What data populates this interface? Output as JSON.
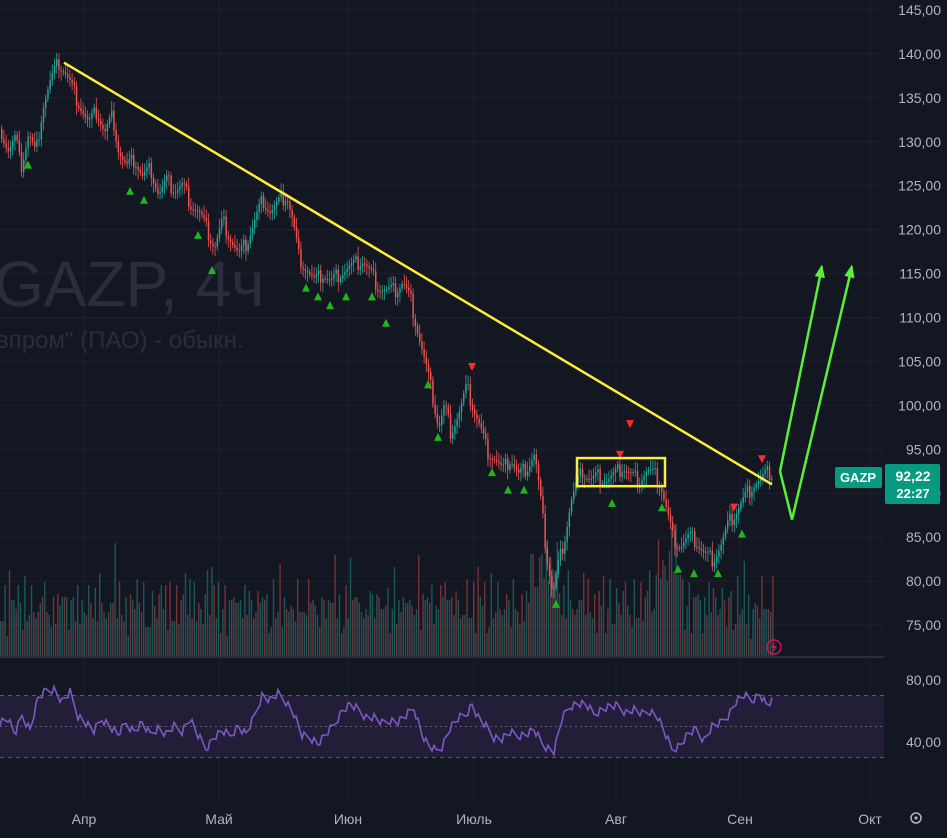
{
  "chart_data": {
    "type": "candlestick",
    "watermark": {
      "symbol_line": "GAZP, 4ч",
      "name_line": "впром\" (ПАО) - обыкн."
    },
    "price_axis": {
      "ticks": [
        "145,00",
        "140,00",
        "135,00",
        "130,00",
        "125,00",
        "120,00",
        "115,00",
        "110,00",
        "105,00",
        "100,00",
        "95,00",
        "90,00",
        "85,00",
        "80,00",
        "75,00"
      ],
      "range": [
        70,
        146
      ]
    },
    "time_axis": {
      "ticks": [
        "Апр",
        "Май",
        "Июн",
        "Июль",
        "Авг",
        "Сен",
        "Окт"
      ]
    },
    "rsi_axis": {
      "ticks": [
        "80,00",
        "40,00"
      ],
      "range": [
        20,
        90
      ],
      "upper_band": 70,
      "lower_band": 30,
      "mid": 50
    },
    "last_price": {
      "symbol": "GAZP",
      "value": "92,22",
      "countdown": "22:27"
    },
    "price_path": [
      [
        0,
        131.5
      ],
      [
        8,
        129
      ],
      [
        15,
        130.5
      ],
      [
        20,
        127
      ],
      [
        28,
        131
      ],
      [
        35,
        128.5
      ],
      [
        42,
        134
      ],
      [
        50,
        137
      ],
      [
        58,
        139
      ],
      [
        64,
        138
      ],
      [
        72,
        136
      ],
      [
        80,
        134
      ],
      [
        88,
        132
      ],
      [
        96,
        133.5
      ],
      [
        104,
        131
      ],
      [
        112,
        133
      ],
      [
        118,
        129
      ],
      [
        126,
        127
      ],
      [
        134,
        128
      ],
      [
        142,
        126
      ],
      [
        150,
        127
      ],
      [
        158,
        124
      ],
      [
        166,
        125.5
      ],
      [
        174,
        124.5
      ],
      [
        182,
        125
      ],
      [
        190,
        123
      ],
      [
        198,
        122
      ],
      [
        206,
        120
      ],
      [
        214,
        118
      ],
      [
        222,
        121
      ],
      [
        230,
        119
      ],
      [
        238,
        117
      ],
      [
        246,
        118.5
      ],
      [
        254,
        121
      ],
      [
        262,
        123.5
      ],
      [
        270,
        122
      ],
      [
        278,
        123
      ],
      [
        286,
        124
      ],
      [
        292,
        121
      ],
      [
        298,
        117
      ],
      [
        306,
        115.5
      ],
      [
        314,
        114
      ],
      [
        322,
        115
      ],
      [
        330,
        114
      ],
      [
        338,
        115
      ],
      [
        346,
        115.5
      ],
      [
        354,
        116
      ],
      [
        362,
        116.5
      ],
      [
        370,
        115
      ],
      [
        378,
        113.5
      ],
      [
        386,
        113
      ],
      [
        394,
        113
      ],
      [
        402,
        114
      ],
      [
        410,
        112
      ],
      [
        418,
        108
      ],
      [
        426,
        104
      ],
      [
        432,
        101
      ],
      [
        438,
        97.5
      ],
      [
        444,
        100
      ],
      [
        450,
        97
      ],
      [
        458,
        99
      ],
      [
        466,
        102
      ],
      [
        472,
        100
      ],
      [
        478,
        98
      ],
      [
        486,
        95
      ],
      [
        494,
        94
      ],
      [
        502,
        92.5
      ],
      [
        510,
        94
      ],
      [
        518,
        92
      ],
      [
        526,
        93
      ],
      [
        534,
        94.5
      ],
      [
        540,
        89
      ],
      [
        546,
        83
      ],
      [
        552,
        78.5
      ],
      [
        558,
        82
      ],
      [
        564,
        85
      ],
      [
        570,
        89
      ],
      [
        576,
        91
      ],
      [
        582,
        92.5
      ],
      [
        590,
        91.5
      ],
      [
        598,
        92
      ],
      [
        606,
        91.5
      ],
      [
        614,
        92
      ],
      [
        622,
        93
      ],
      [
        630,
        92
      ],
      [
        638,
        91.5
      ],
      [
        646,
        92.5
      ],
      [
        654,
        92
      ],
      [
        660,
        91
      ],
      [
        666,
        88
      ],
      [
        672,
        85
      ],
      [
        680,
        84
      ],
      [
        688,
        85
      ],
      [
        696,
        84.5
      ],
      [
        704,
        83
      ],
      [
        712,
        82.5
      ],
      [
        720,
        84
      ],
      [
        728,
        86.5
      ],
      [
        736,
        88
      ],
      [
        744,
        89.5
      ],
      [
        752,
        91
      ],
      [
        760,
        91.5
      ],
      [
        768,
        92.3
      ],
      [
        772,
        92.2
      ]
    ],
    "volume_profile": [
      6,
      4,
      8,
      3,
      12,
      5,
      7,
      9,
      4,
      3,
      10,
      6,
      5,
      8,
      7,
      4,
      3,
      9,
      6,
      5,
      11,
      4,
      7,
      3,
      6,
      5,
      8,
      4,
      9,
      7,
      5,
      3,
      6,
      10,
      4,
      8,
      5,
      7,
      3,
      6,
      9,
      4,
      5,
      8,
      6,
      12,
      5,
      7,
      4,
      3,
      8,
      6,
      14,
      5,
      9,
      7,
      4,
      6,
      3,
      8,
      5,
      7,
      10,
      4,
      6,
      9,
      5,
      3,
      7,
      8,
      4,
      6,
      11,
      5,
      7,
      3,
      9,
      6,
      4,
      8,
      5,
      7,
      6,
      13,
      4,
      8,
      5,
      9,
      6,
      7,
      4,
      5,
      8,
      10,
      6,
      12,
      7,
      5,
      9,
      4,
      6,
      8,
      3,
      7,
      5,
      9
    ],
    "rsi_path": [
      [
        0,
        53
      ],
      [
        8,
        55
      ],
      [
        15,
        45
      ],
      [
        22,
        57
      ],
      [
        30,
        48
      ],
      [
        38,
        68
      ],
      [
        46,
        73
      ],
      [
        54,
        74
      ],
      [
        62,
        66
      ],
      [
        70,
        72
      ],
      [
        78,
        57
      ],
      [
        86,
        52
      ],
      [
        94,
        47
      ],
      [
        102,
        55
      ],
      [
        110,
        50
      ],
      [
        118,
        45
      ],
      [
        126,
        52
      ],
      [
        134,
        47
      ],
      [
        142,
        52
      ],
      [
        150,
        45
      ],
      [
        158,
        49
      ],
      [
        166,
        45
      ],
      [
        174,
        50
      ],
      [
        182,
        47
      ],
      [
        190,
        55
      ],
      [
        198,
        44
      ],
      [
        206,
        36
      ],
      [
        214,
        43
      ],
      [
        222,
        47
      ],
      [
        230,
        44
      ],
      [
        238,
        50
      ],
      [
        246,
        45
      ],
      [
        254,
        56
      ],
      [
        262,
        70
      ],
      [
        270,
        67
      ],
      [
        278,
        71
      ],
      [
        286,
        66
      ],
      [
        294,
        58
      ],
      [
        302,
        44
      ],
      [
        310,
        43
      ],
      [
        318,
        39
      ],
      [
        326,
        45
      ],
      [
        334,
        51
      ],
      [
        342,
        60
      ],
      [
        350,
        64
      ],
      [
        358,
        61
      ],
      [
        366,
        56
      ],
      [
        374,
        56
      ],
      [
        382,
        52
      ],
      [
        390,
        54
      ],
      [
        398,
        53
      ],
      [
        406,
        57
      ],
      [
        414,
        62
      ],
      [
        422,
        45
      ],
      [
        428,
        38
      ],
      [
        436,
        34
      ],
      [
        442,
        37
      ],
      [
        450,
        49
      ],
      [
        458,
        55
      ],
      [
        466,
        58
      ],
      [
        472,
        64
      ],
      [
        478,
        56
      ],
      [
        486,
        50
      ],
      [
        494,
        43
      ],
      [
        502,
        42
      ],
      [
        510,
        46
      ],
      [
        518,
        44
      ],
      [
        526,
        45
      ],
      [
        534,
        48
      ],
      [
        542,
        39
      ],
      [
        548,
        36
      ],
      [
        554,
        34
      ],
      [
        562,
        55
      ],
      [
        570,
        63
      ],
      [
        578,
        65
      ],
      [
        586,
        64
      ],
      [
        594,
        58
      ],
      [
        602,
        61
      ],
      [
        610,
        63
      ],
      [
        618,
        63
      ],
      [
        626,
        59
      ],
      [
        634,
        61
      ],
      [
        642,
        58
      ],
      [
        650,
        60
      ],
      [
        658,
        56
      ],
      [
        666,
        44
      ],
      [
        672,
        35
      ],
      [
        680,
        38
      ],
      [
        688,
        45
      ],
      [
        696,
        48
      ],
      [
        704,
        41
      ],
      [
        712,
        50
      ],
      [
        720,
        52
      ],
      [
        728,
        57
      ],
      [
        736,
        66
      ],
      [
        744,
        70
      ],
      [
        752,
        67
      ],
      [
        760,
        71
      ],
      [
        766,
        64
      ],
      [
        772,
        66
      ]
    ],
    "buy_markers": [
      [
        28,
        129
      ],
      [
        130,
        126
      ],
      [
        144,
        125
      ],
      [
        198,
        121
      ],
      [
        212,
        117
      ],
      [
        306,
        115
      ],
      [
        318,
        114
      ],
      [
        330,
        113
      ],
      [
        346,
        114
      ],
      [
        372,
        114
      ],
      [
        386,
        111
      ],
      [
        428,
        104
      ],
      [
        438,
        98
      ],
      [
        492,
        94
      ],
      [
        508,
        92
      ],
      [
        524,
        92
      ],
      [
        556,
        79
      ],
      [
        612,
        90.5
      ],
      [
        662,
        90
      ],
      [
        678,
        83
      ],
      [
        694,
        82.5
      ],
      [
        718,
        82.5
      ],
      [
        742,
        87
      ]
    ],
    "sell_markers": [
      [
        472,
        103
      ],
      [
        620,
        93
      ],
      [
        630,
        96.5
      ],
      [
        734,
        87
      ],
      [
        762,
        92.5
      ]
    ],
    "annotations": {
      "trendline": [
        [
          64,
          139
        ],
        [
          772,
          91
        ]
      ],
      "consolidation_box": {
        "x1": 577,
        "x2": 665,
        "p_top": 94,
        "p_bottom": 90.8
      },
      "forecast_arrows": [
        [
          [
            780,
            92.5
          ],
          [
            792,
            87
          ],
          [
            852,
            115.8
          ]
        ],
        [
          [
            780,
            92.5
          ],
          [
            822,
            115.8
          ]
        ]
      ]
    },
    "colors": {
      "background": "#131722",
      "grid": "#1e222d",
      "up": "#26a69a",
      "down": "#ef5350",
      "trendline": "#ffeb3b",
      "forecast": "#59f03c",
      "rsi": "#7e57c2",
      "rsi_band_fill": "#2a2240",
      "badge": "#089981",
      "axis_text": "#b2b5be"
    }
  }
}
